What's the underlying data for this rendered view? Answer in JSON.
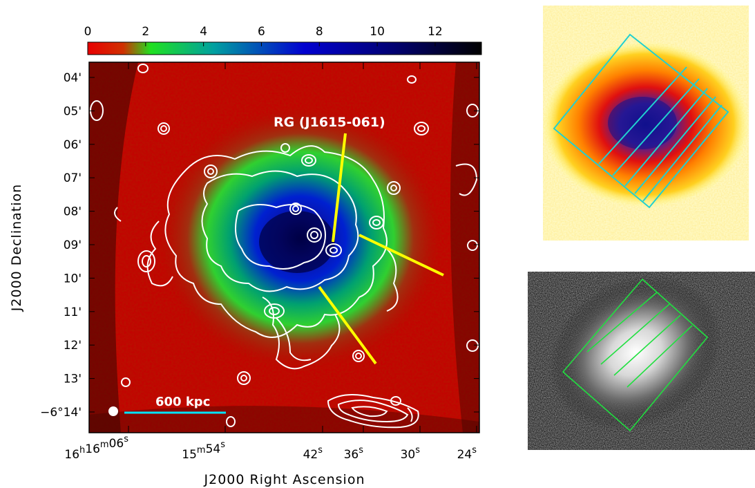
{
  "colorbar": {
    "tick_values": [
      "0",
      "2",
      "4",
      "6",
      "8",
      "10",
      "12"
    ],
    "range": [
      0,
      13.6
    ],
    "colors": [
      "#e80000",
      "#20e020",
      "#0000c0",
      "#000000"
    ]
  },
  "main_panel": {
    "y_axis_title": "J2000 Declination",
    "x_axis_title": "J2000 Right Ascension",
    "dec_ticks": [
      "04'",
      "05'",
      "06'",
      "07'",
      "08'",
      "09'",
      "10'",
      "11'",
      "12'",
      "13'",
      "−6°14'"
    ],
    "ra_ticks": [
      {
        "main": "16",
        "sup1": "h",
        "mid": "16",
        "sup2": "m",
        "sec": "06",
        "sup3": "s"
      },
      {
        "main": "15",
        "sup2": "m",
        "sec": "54",
        "sup3": "s"
      },
      {
        "sec": "42",
        "sup3": "s"
      },
      {
        "sec": "36",
        "sup3": "s"
      },
      {
        "sec": "30",
        "sup3": "s"
      },
      {
        "sec": "24",
        "sup3": "s"
      }
    ],
    "radio_galaxy_label": "RG (J1615-061)",
    "scale_bar_label": "600 kpc",
    "contour_color": "#ffffff",
    "sector_line_color": "#ffff00",
    "scale_bar_color": "#00e5ff"
  },
  "top_right_panel": {
    "colors": [
      "#ffffe0",
      "#ffd000",
      "#ff2000",
      "#1010a0"
    ],
    "region_color": "#20d0d0"
  },
  "bottom_right_panel": {
    "colors": [
      "#000000",
      "#ffffff"
    ],
    "region_color": "#20e040"
  }
}
